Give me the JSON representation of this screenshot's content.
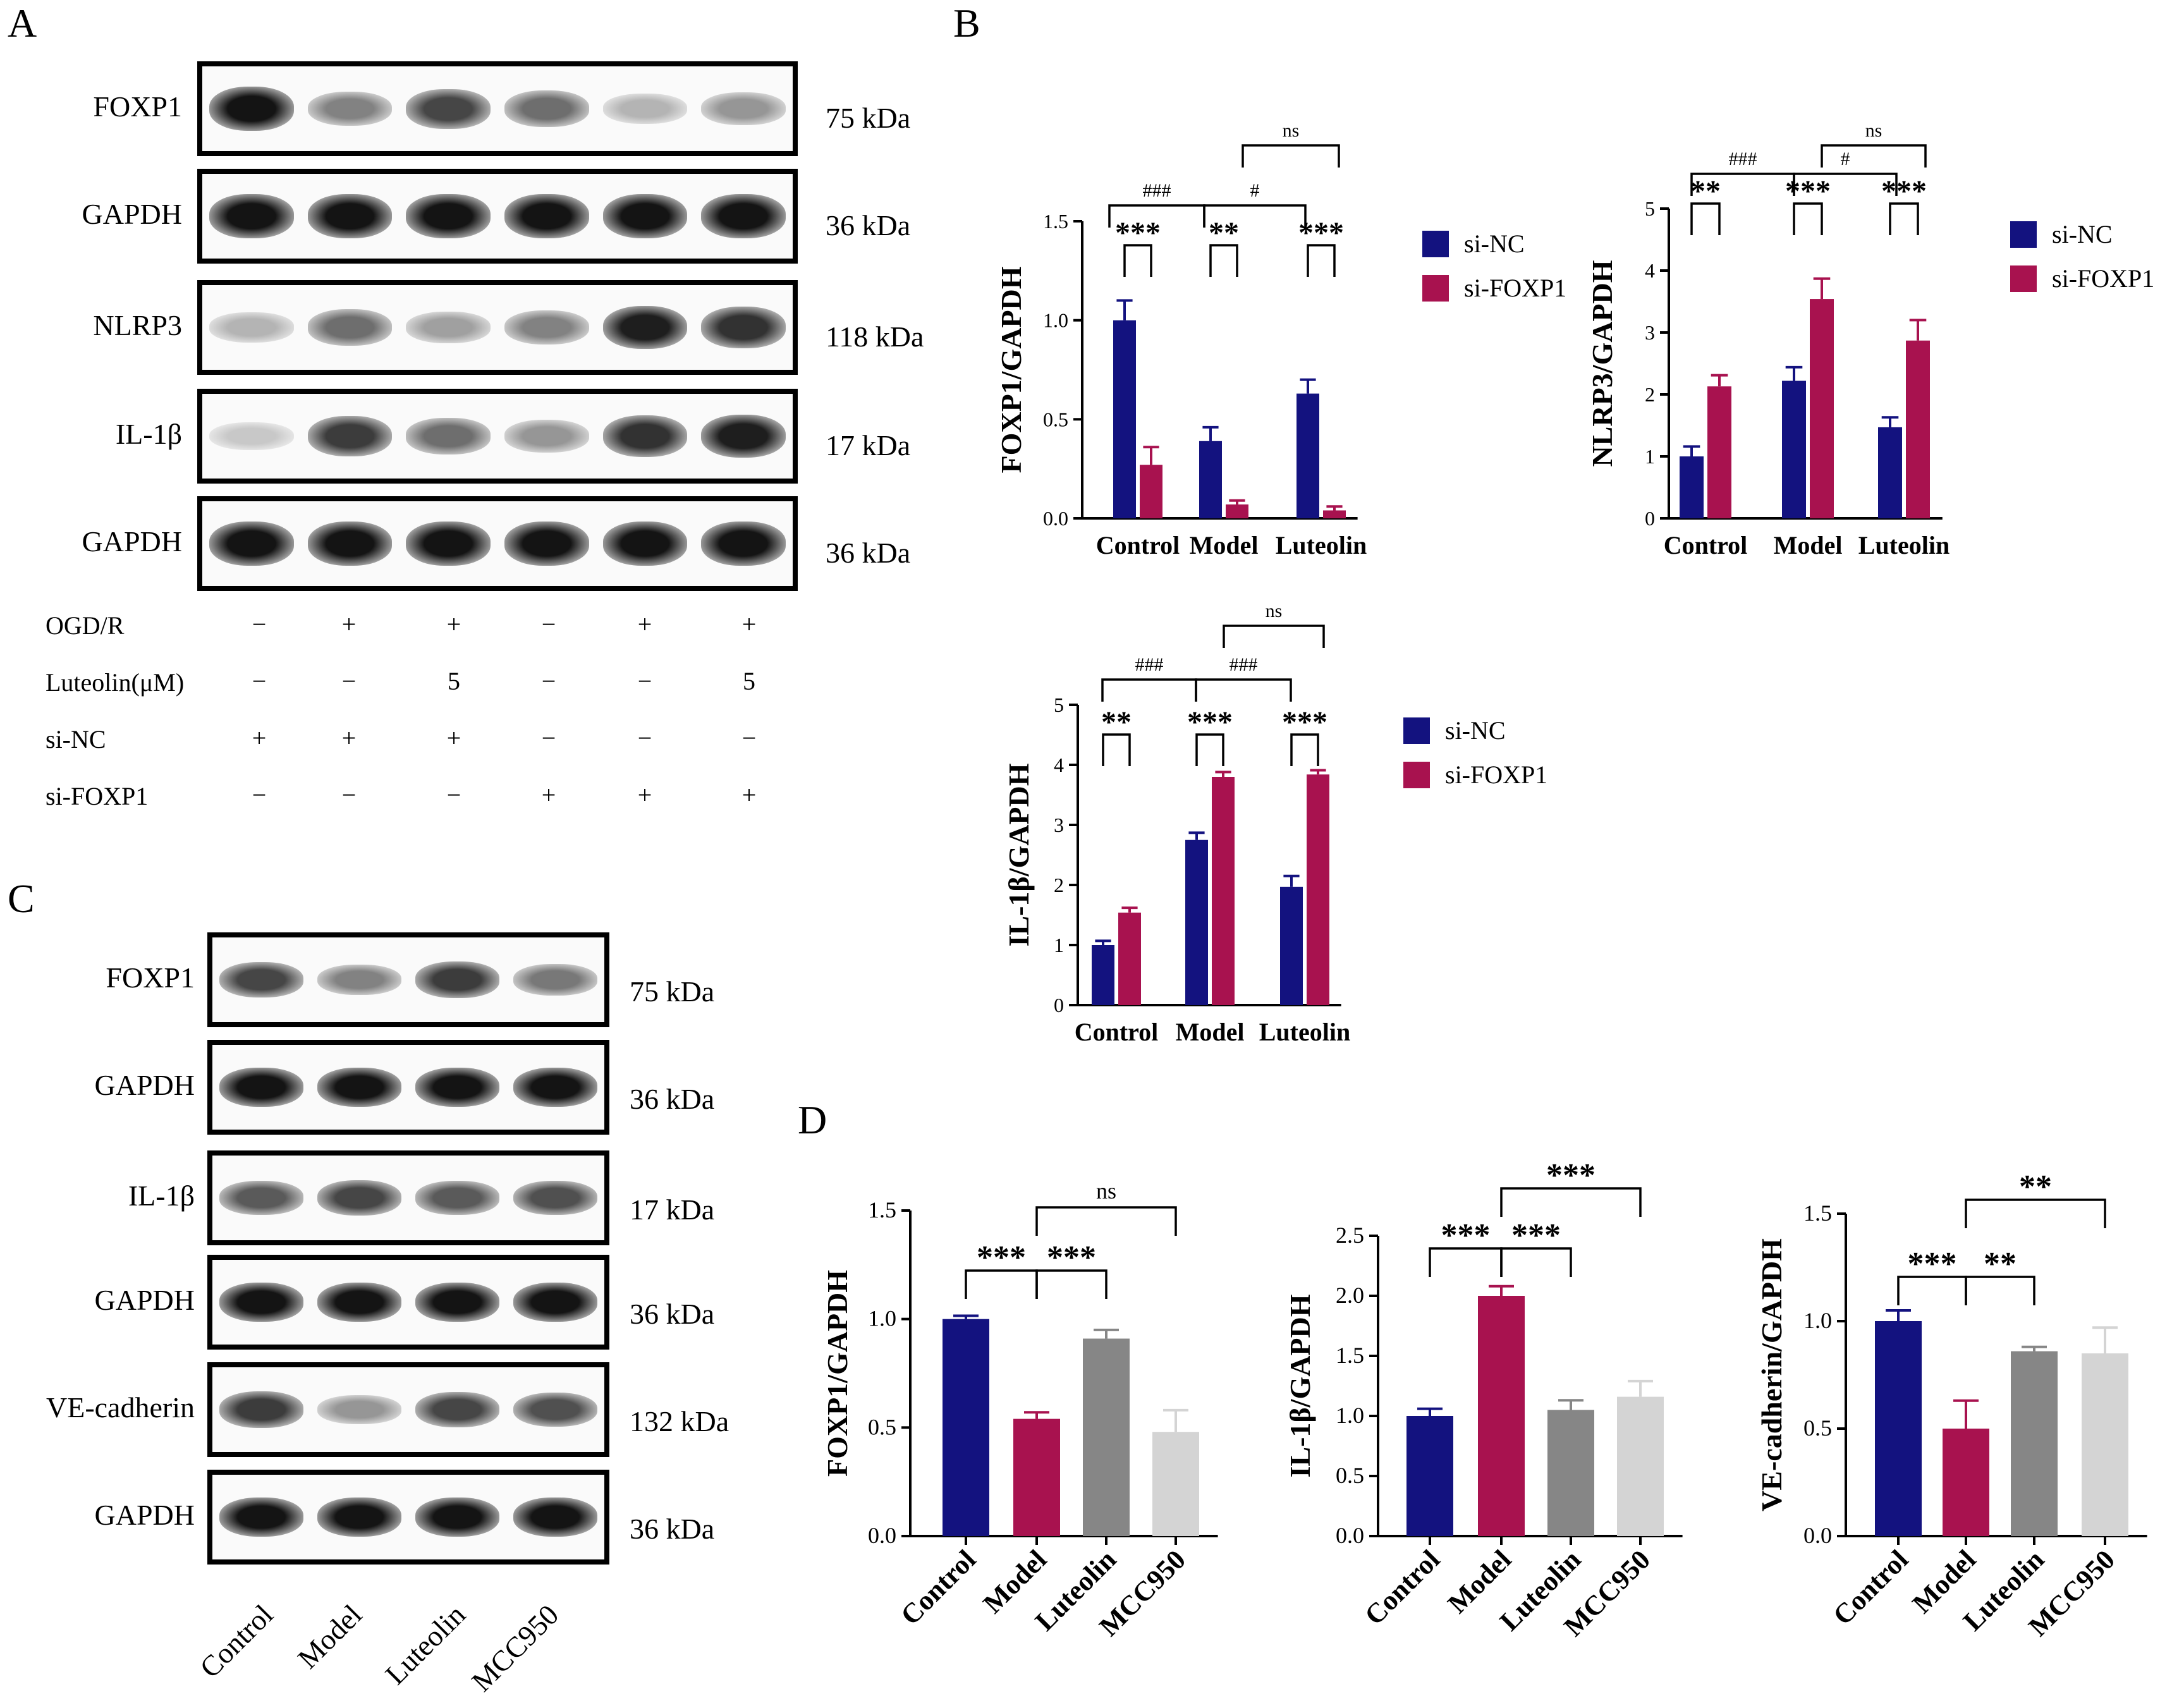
{
  "panels": {
    "a": "A",
    "b": "B",
    "c": "C",
    "d": "D"
  },
  "blot_a": {
    "rows": [
      {
        "label": "FOXP1",
        "kda": "75 kDa",
        "intensity": [
          1.0,
          0.45,
          0.75,
          0.55,
          0.2,
          0.35
        ]
      },
      {
        "label": "GAPDH",
        "kda": "36 kDa",
        "intensity": [
          1.0,
          1.0,
          1.0,
          1.0,
          1.0,
          1.0
        ]
      },
      {
        "label": "NLRP3",
        "kda": "118 kDa",
        "intensity": [
          0.2,
          0.55,
          0.3,
          0.45,
          0.95,
          0.85
        ]
      },
      {
        "label": "IL-1β",
        "kda": "17 kDa",
        "intensity": [
          0.1,
          0.8,
          0.55,
          0.35,
          0.85,
          0.95
        ]
      },
      {
        "label": "GAPDH",
        "kda": "36 kDa",
        "intensity": [
          1.0,
          1.0,
          1.0,
          1.0,
          1.0,
          1.0
        ]
      }
    ],
    "conditions": [
      {
        "label": "OGD/R",
        "values": [
          "−",
          "+",
          "+",
          "−",
          "+",
          "+"
        ]
      },
      {
        "label": "Luteolin(μM)",
        "values": [
          "−",
          "−",
          "5",
          "−",
          "−",
          "5"
        ]
      },
      {
        "label": "si-NC",
        "values": [
          "+",
          "+",
          "+",
          "−",
          "−",
          "−"
        ]
      },
      {
        "label": "si-FOXP1",
        "values": [
          "−",
          "−",
          "−",
          "+",
          "+",
          "+"
        ]
      }
    ]
  },
  "blot_c": {
    "rows": [
      {
        "label": "FOXP1",
        "kda": "75 kDa",
        "intensity": [
          0.75,
          0.45,
          0.8,
          0.5
        ]
      },
      {
        "label": "GAPDH",
        "kda": "36 kDa",
        "intensity": [
          1.0,
          1.0,
          1.0,
          1.0
        ]
      },
      {
        "label": "IL-1β",
        "kda": "17 kDa",
        "intensity": [
          0.65,
          0.75,
          0.65,
          0.7
        ]
      },
      {
        "label": "GAPDH",
        "kda": "36 kDa",
        "intensity": [
          1.0,
          1.0,
          1.0,
          1.0
        ]
      },
      {
        "label": "VE-cadherin",
        "kda": "132 kDa",
        "intensity": [
          0.8,
          0.35,
          0.75,
          0.7
        ]
      },
      {
        "label": "GAPDH",
        "kda": "36 kDa",
        "intensity": [
          1.0,
          1.0,
          1.0,
          1.0
        ]
      }
    ],
    "lanes": [
      "Control",
      "Model",
      "Luteolin",
      "MCC950"
    ]
  },
  "colors": {
    "navy": "#13127f",
    "crimson": "#a8124f",
    "gray": "#868686",
    "lightgray": "#d4d4d4"
  },
  "chart_data": [
    {
      "type": "bar",
      "panel": "B",
      "ylabel": "FOXP1/GAPDH",
      "ylim": [
        0,
        1.5
      ],
      "yticks": [
        "0.0",
        "0.5",
        "1.0",
        "1.5"
      ],
      "categories": [
        "Control",
        "Model",
        "Luteolin"
      ],
      "series": [
        {
          "name": "si-NC",
          "values": [
            1.0,
            0.39,
            0.63
          ],
          "errors": [
            0.1,
            0.07,
            0.07
          ]
        },
        {
          "name": "si-FOXP1",
          "values": [
            0.27,
            0.07,
            0.04
          ],
          "errors": [
            0.09,
            0.02,
            0.02
          ]
        }
      ],
      "annotations": [
        {
          "text": "***",
          "between": "Control si-NC vs si-FOXP1"
        },
        {
          "text": "**",
          "between": "Model si-NC vs si-FOXP1"
        },
        {
          "text": "***",
          "between": "Luteolin si-NC vs si-FOXP1"
        },
        {
          "text": "###",
          "between": "Control vs Model"
        },
        {
          "text": "#",
          "between": "Model vs Luteolin"
        },
        {
          "text": "ns",
          "between": "Model si-FOXP1 vs Luteolin si-FOXP1"
        }
      ]
    },
    {
      "type": "bar",
      "panel": "B",
      "ylabel": "NLRP3/GAPDH",
      "ylim": [
        0,
        5
      ],
      "yticks": [
        "0",
        "1",
        "2",
        "3",
        "4",
        "5"
      ],
      "categories": [
        "Control",
        "Model",
        "Luteolin"
      ],
      "series": [
        {
          "name": "si-NC",
          "values": [
            1.0,
            2.22,
            1.47
          ],
          "errors": [
            0.16,
            0.22,
            0.16
          ]
        },
        {
          "name": "si-FOXP1",
          "values": [
            2.13,
            3.54,
            2.87
          ],
          "errors": [
            0.18,
            0.33,
            0.33
          ]
        }
      ],
      "annotations": [
        {
          "text": "**",
          "between": "Control si-NC vs si-FOXP1"
        },
        {
          "text": "***",
          "between": "Model si-NC vs si-FOXP1"
        },
        {
          "text": "***",
          "between": "Luteolin si-NC vs si-FOXP1"
        },
        {
          "text": "###",
          "between": "Control vs Model"
        },
        {
          "text": "#",
          "between": "Model vs Luteolin"
        },
        {
          "text": "ns",
          "between": "Model si-FOXP1 vs Luteolin si-FOXP1"
        }
      ]
    },
    {
      "type": "bar",
      "panel": "B",
      "ylabel": "IL-1β/GAPDH",
      "ylim": [
        0,
        5
      ],
      "yticks": [
        "0",
        "1",
        "2",
        "3",
        "4",
        "5"
      ],
      "categories": [
        "Control",
        "Model",
        "Luteolin"
      ],
      "series": [
        {
          "name": "si-NC",
          "values": [
            1.0,
            2.75,
            1.97
          ],
          "errors": [
            0.07,
            0.12,
            0.18
          ]
        },
        {
          "name": "si-FOXP1",
          "values": [
            1.54,
            3.8,
            3.84
          ],
          "errors": [
            0.08,
            0.08,
            0.07
          ]
        }
      ],
      "annotations": [
        {
          "text": "**",
          "between": "Control si-NC vs si-FOXP1"
        },
        {
          "text": "***",
          "between": "Model si-NC vs si-FOXP1"
        },
        {
          "text": "***",
          "between": "Luteolin si-NC vs si-FOXP1"
        },
        {
          "text": "###",
          "between": "Control vs Model"
        },
        {
          "text": "###",
          "between": "Model vs Luteolin"
        },
        {
          "text": "ns",
          "between": "Model si-FOXP1 vs Luteolin si-FOXP1"
        }
      ]
    },
    {
      "type": "bar",
      "panel": "D",
      "ylabel": "FOXP1/GAPDH",
      "ylim": [
        0,
        1.5
      ],
      "yticks": [
        "0.0",
        "0.5",
        "1.0",
        "1.5"
      ],
      "categories": [
        "Control",
        "Model",
        "Luteolin",
        "MCC950"
      ],
      "values": [
        1.0,
        0.54,
        0.91,
        0.48
      ],
      "errors": [
        0.015,
        0.03,
        0.04,
        0.1
      ],
      "annotations": [
        {
          "text": "***",
          "between": "Control vs Model"
        },
        {
          "text": "***",
          "between": "Model vs Luteolin"
        },
        {
          "text": "ns",
          "between": "Model vs MCC950"
        }
      ]
    },
    {
      "type": "bar",
      "panel": "D",
      "ylabel": "IL-1β/GAPDH",
      "ylim": [
        0,
        2.5
      ],
      "yticks": [
        "0.0",
        "0.5",
        "1.0",
        "1.5",
        "2.0",
        "2.5"
      ],
      "categories": [
        "Control",
        "Model",
        "Luteolin",
        "MCC950"
      ],
      "values": [
        1.0,
        2.0,
        1.05,
        1.16
      ],
      "errors": [
        0.06,
        0.08,
        0.08,
        0.13
      ],
      "annotations": [
        {
          "text": "***",
          "between": "Control vs Model"
        },
        {
          "text": "***",
          "between": "Model vs Luteolin"
        },
        {
          "text": "***",
          "between": "Model vs MCC950"
        }
      ]
    },
    {
      "type": "bar",
      "panel": "D",
      "ylabel": "VE-cadherin/GAPDH",
      "ylim": [
        0,
        1.5
      ],
      "yticks": [
        "0.0",
        "0.5",
        "1.0",
        "1.5"
      ],
      "categories": [
        "Control",
        "Model",
        "Luteolin",
        "MCC950"
      ],
      "values": [
        1.0,
        0.5,
        0.86,
        0.85
      ],
      "errors": [
        0.05,
        0.13,
        0.02,
        0.12
      ],
      "annotations": [
        {
          "text": "***",
          "between": "Control vs Model"
        },
        {
          "text": "**",
          "between": "Model vs Luteolin"
        },
        {
          "text": "**",
          "between": "Model vs MCC950"
        }
      ]
    }
  ]
}
